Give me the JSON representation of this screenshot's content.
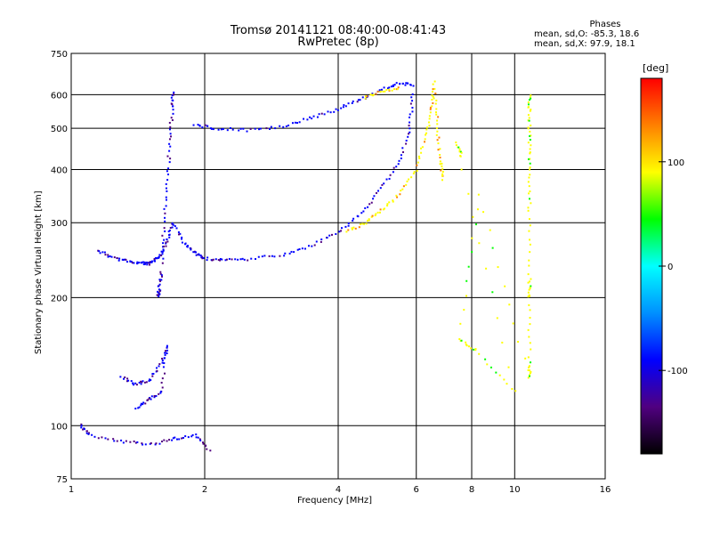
{
  "header": {
    "title": "Tromsø 20141121 08:40:00-08:41:43",
    "subtitle": "RwPretec (8p)"
  },
  "phase_summary": {
    "heading": "Phases",
    "line_o": "mean, sd,O: -85.3, 18.6",
    "line_x": "mean, sd,X:  97.9, 18.1"
  },
  "chart_data": {
    "type": "scatter",
    "title": "Tromsø 20141121 08:40:00-08:41:43",
    "subtitle": "RwPretec (8p)",
    "xlabel": "Frequency [MHz]",
    "ylabel": "Stationary phase Virtual Height [km]",
    "x_scale": "log",
    "y_scale": "log",
    "xlim": [
      1,
      16
    ],
    "ylim": [
      75,
      750
    ],
    "x_ticks": [
      1,
      2,
      4,
      6,
      8,
      10,
      16
    ],
    "y_ticks": [
      75,
      100,
      200,
      300,
      400,
      500,
      600,
      750
    ],
    "grid": true,
    "colorbar": {
      "label": "[deg]",
      "range": [
        -180,
        180
      ],
      "ticks": [
        100,
        0,
        -100
      ],
      "colors": [
        "#000000",
        "#500080",
        "#0000ff",
        "#0090ff",
        "#00ffff",
        "#00ff00",
        "#ffff00",
        "#ff8000",
        "#ff0000"
      ]
    },
    "series": [
      {
        "type": "O",
        "trace": [
          [
            1.15,
            258
          ],
          [
            1.25,
            248
          ],
          [
            1.35,
            243
          ],
          [
            1.45,
            241
          ],
          [
            1.5,
            240
          ],
          [
            1.55,
            245
          ],
          [
            1.6,
            255
          ],
          [
            1.65,
            275
          ],
          [
            1.7,
            300
          ],
          [
            1.8,
            268
          ],
          [
            1.9,
            255
          ],
          [
            2.0,
            247
          ],
          [
            2.2,
            245
          ],
          [
            2.5,
            246
          ],
          [
            3.0,
            252
          ],
          [
            3.5,
            265
          ],
          [
            4.0,
            285
          ],
          [
            4.5,
            315
          ],
          [
            5.0,
            360
          ],
          [
            5.5,
            420
          ],
          [
            5.8,
            500
          ],
          [
            5.9,
            600
          ]
        ],
        "phase_deg": -100
      },
      {
        "type": "O",
        "trace": [
          [
            1.6,
            240
          ],
          [
            1.62,
            300
          ],
          [
            1.65,
            380
          ],
          [
            1.67,
            470
          ],
          [
            1.69,
            560
          ],
          [
            1.7,
            610
          ]
        ],
        "phase_deg": -105
      },
      {
        "type": "O",
        "trace": [
          [
            1.6,
            230
          ],
          [
            1.58,
            210
          ],
          [
            1.57,
            200
          ]
        ],
        "phase_deg": -110
      },
      {
        "type": "O",
        "trace": [
          [
            1.9,
            510
          ],
          [
            2.1,
            500
          ],
          [
            2.5,
            495
          ],
          [
            3.0,
            505
          ],
          [
            3.5,
            530
          ],
          [
            4.0,
            555
          ],
          [
            4.5,
            585
          ],
          [
            5.0,
            615
          ],
          [
            5.5,
            640
          ],
          [
            5.9,
            630
          ]
        ],
        "phase_deg": -95
      },
      {
        "type": "X",
        "trace": [
          [
            4.2,
            285
          ],
          [
            4.6,
            300
          ],
          [
            5.0,
            320
          ],
          [
            5.5,
            350
          ],
          [
            6.0,
            400
          ],
          [
            6.3,
            480
          ],
          [
            6.5,
            560
          ],
          [
            6.6,
            640
          ]
        ],
        "phase_deg": 100
      },
      {
        "type": "X",
        "trace": [
          [
            6.6,
            600
          ],
          [
            6.7,
            500
          ],
          [
            6.8,
            420
          ],
          [
            6.9,
            380
          ]
        ],
        "phase_deg": 105
      },
      {
        "type": "X",
        "trace": [
          [
            4.6,
            590
          ],
          [
            5.0,
            610
          ],
          [
            5.5,
            620
          ]
        ],
        "phase_deg": 100
      },
      {
        "type": "O",
        "trace": [
          [
            1.3,
            130
          ],
          [
            1.4,
            125
          ],
          [
            1.5,
            128
          ],
          [
            1.6,
            140
          ],
          [
            1.65,
            155
          ],
          [
            1.6,
            120
          ],
          [
            1.5,
            115
          ],
          [
            1.4,
            110
          ]
        ],
        "phase_deg": -110
      },
      {
        "type": "O",
        "trace": [
          [
            1.05,
            100
          ],
          [
            1.1,
            95
          ],
          [
            1.3,
            92
          ],
          [
            1.5,
            90
          ],
          [
            1.7,
            93
          ],
          [
            1.9,
            95
          ],
          [
            2.05,
            88
          ]
        ],
        "phase_deg": -110
      },
      {
        "type": "mixed",
        "trace": [
          [
            10.8,
            600
          ],
          [
            10.8,
            540
          ],
          [
            10.8,
            470
          ],
          [
            10.8,
            400
          ],
          [
            10.8,
            320
          ],
          [
            10.8,
            220
          ],
          [
            10.8,
            200
          ],
          [
            10.8,
            140
          ],
          [
            10.8,
            130
          ],
          [
            8.3,
            350
          ],
          [
            7.5,
            160
          ],
          [
            8.2,
            150
          ],
          [
            10.0,
            120
          ],
          [
            7.4,
            460
          ],
          [
            7.6,
            430
          ]
        ],
        "phase_deg": 80
      }
    ]
  }
}
